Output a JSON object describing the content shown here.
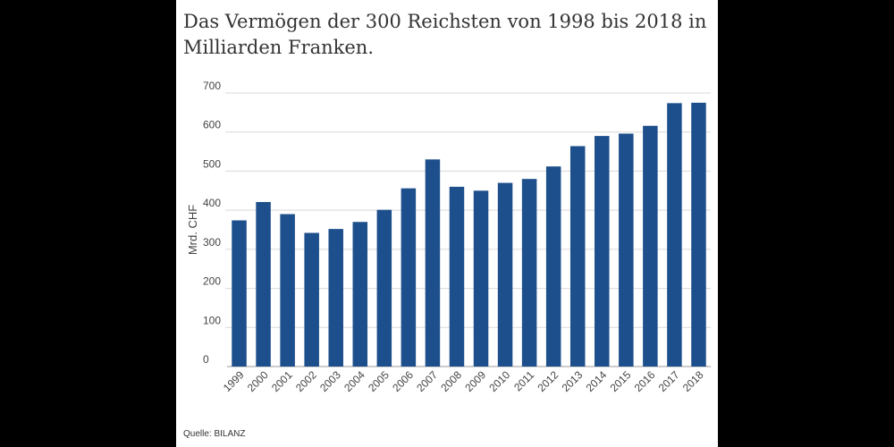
{
  "title": "Das Vermögen der 300 Reichsten von 1998 bis 2018 in Milliarden Franken.",
  "source": "Quelle: BILANZ",
  "colors": {
    "bar": "#1d4f8c",
    "grid": "#d9d9d9",
    "axis": "#999999",
    "background": "#ffffff"
  },
  "chart_data": {
    "type": "bar",
    "title": "Das Vermögen der 300 Reichsten von 1998 bis 2018 in Milliarden Franken.",
    "xlabel": "",
    "ylabel": "Mrd. CHF",
    "categories": [
      "1999",
      "2000",
      "2001",
      "2002",
      "2003",
      "2004",
      "2005",
      "2006",
      "2007",
      "2008",
      "2009",
      "2010",
      "2011",
      "2012",
      "2013",
      "2014",
      "2015",
      "2016",
      "2017",
      "2018"
    ],
    "values": [
      374,
      421,
      390,
      342,
      352,
      370,
      401,
      456,
      530,
      460,
      450,
      470,
      480,
      512,
      564,
      590,
      596,
      616,
      674,
      675
    ],
    "ylim": [
      0,
      700
    ],
    "yticks": [
      "0",
      "100",
      "200",
      "300",
      "400",
      "500",
      "600",
      "700"
    ],
    "grid": true
  }
}
